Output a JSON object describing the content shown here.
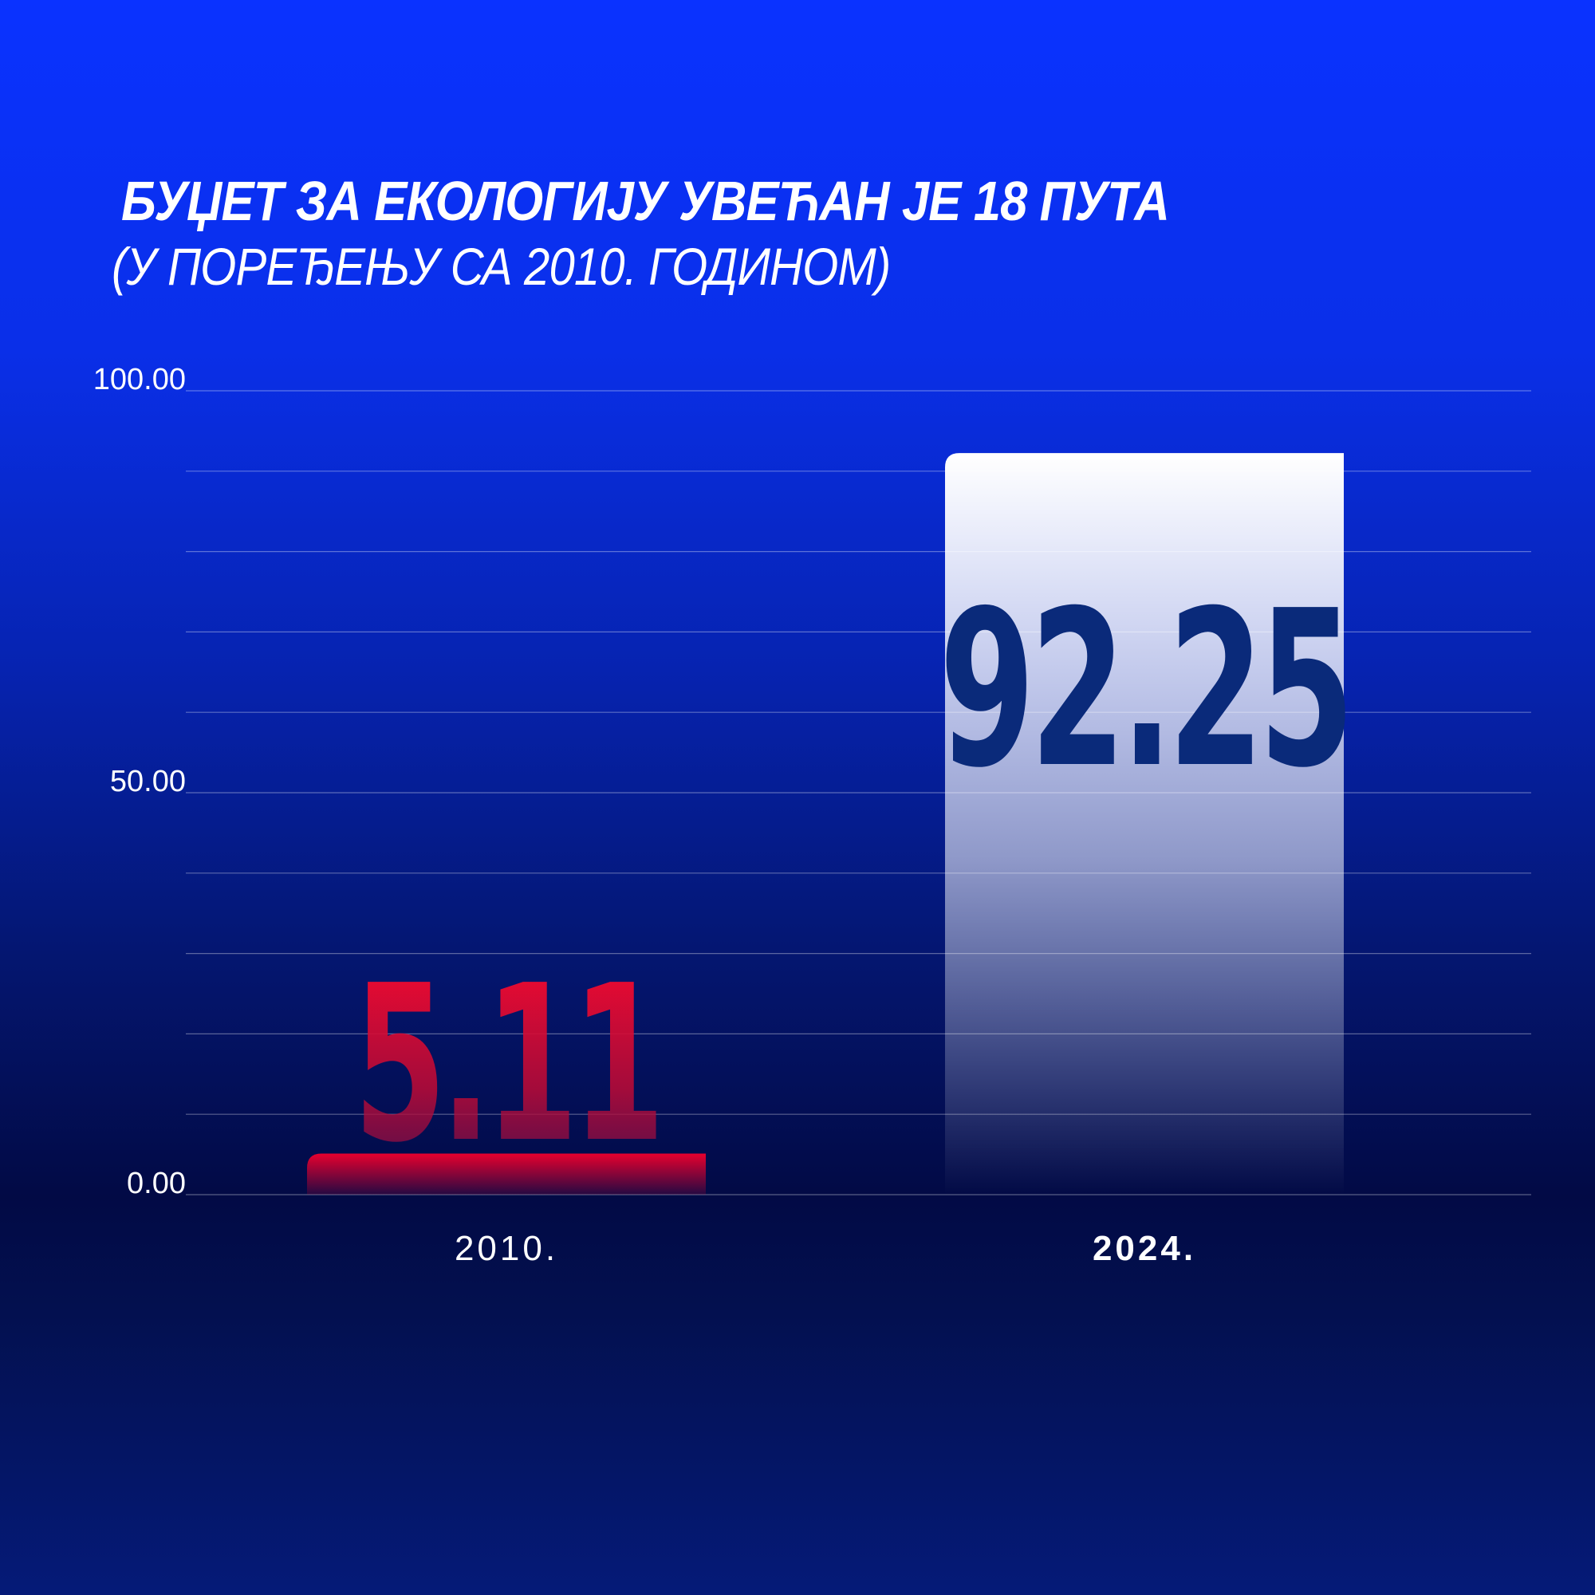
{
  "header": {
    "title": "БУЏЕТ ЗА ЕКОЛОГИЈУ УВЕЋАН ЈЕ 18 ПУТА",
    "subtitle": "(У ПОРЕЂЕЊУ СА 2010. ГОДИНОМ)"
  },
  "colors": {
    "background_top": "#0a32ff",
    "background_bottom": "#020a45",
    "bar_2010": "#e8002d",
    "bar_2024": "#ffffff",
    "value_2024_text": "#0a2a7a",
    "axis_text": "#ffffff"
  },
  "chart_data": {
    "type": "bar",
    "title": "БУЏЕТ ЗА ЕКОЛОГИЈУ УВЕЋАН ЈЕ 18 ПУТА",
    "subtitle": "(У ПОРЕЂЕЊУ СА 2010. ГОДИНОМ)",
    "categories": [
      "2010.",
      "2024."
    ],
    "values": [
      5.11,
      92.25
    ],
    "value_labels": [
      "5.11",
      "92.25"
    ],
    "ylim": [
      0,
      100
    ],
    "yticks": [
      "0.00",
      "50.00",
      "100.00"
    ],
    "grid": true,
    "xlabel": "",
    "ylabel": ""
  }
}
